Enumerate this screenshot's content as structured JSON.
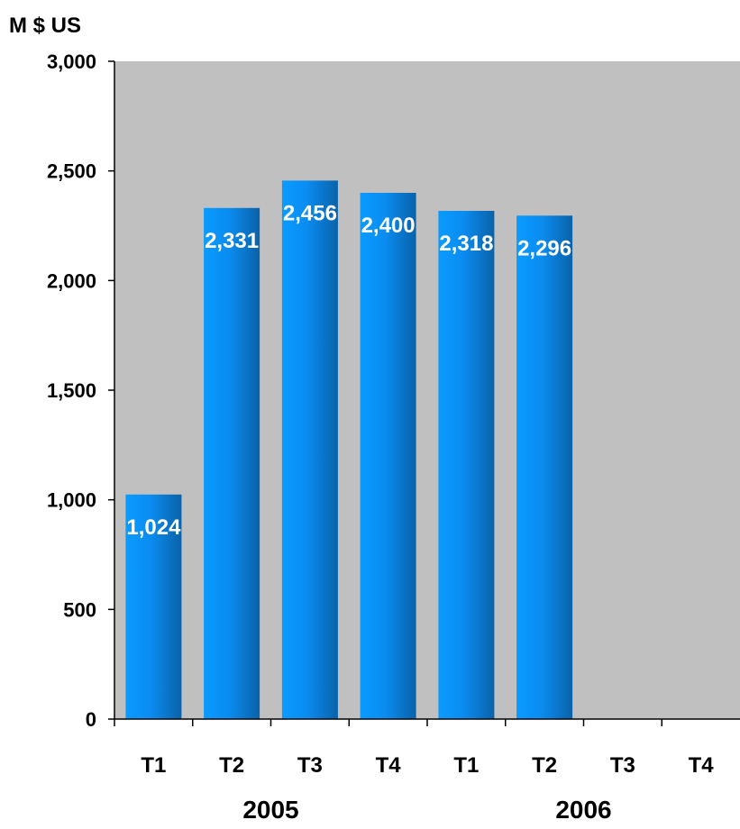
{
  "chart_data": {
    "type": "bar",
    "ylabel": "M $ US",
    "categories": [
      "T1",
      "T2",
      "T3",
      "T4",
      "T1",
      "T2",
      "T3",
      "T4"
    ],
    "groups": [
      {
        "label": "2005",
        "start": 0,
        "end": 3
      },
      {
        "label": "2006",
        "start": 4,
        "end": 7
      }
    ],
    "values": [
      1024,
      2331,
      2456,
      2400,
      2318,
      2296,
      null,
      null
    ],
    "data_labels": [
      "1,024",
      "2,331",
      "2,456",
      "2,400",
      "2,318",
      "2,296",
      "",
      ""
    ],
    "ylim": [
      0,
      3000
    ],
    "yticks": [
      0,
      500,
      1000,
      1500,
      2000,
      2500,
      3000
    ],
    "ytick_labels": [
      "0",
      "500",
      "1,000",
      "1,500",
      "2,000",
      "2,500",
      "3,000"
    ],
    "grid": false,
    "colors": {
      "plot_background": "#c0c0c0",
      "bar_light": "#0a9bff",
      "bar_dark": "#0a62a8",
      "label_color": "#ffffff"
    }
  }
}
